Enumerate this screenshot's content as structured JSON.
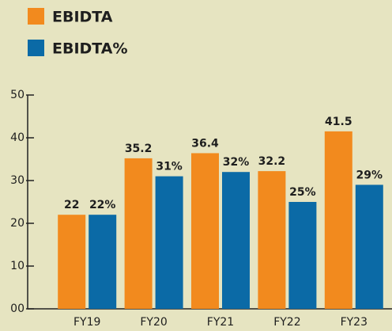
{
  "chart_data": {
    "type": "bar",
    "categories": [
      "FY19",
      "FY20",
      "FY21",
      "FY22",
      "FY23"
    ],
    "series": [
      {
        "name": "EBIDTA",
        "color": "#f28a1e",
        "values": [
          22,
          35.2,
          36.4,
          32.2,
          41.5
        ]
      },
      {
        "name": "EBIDTA%",
        "color": "#0b6aa6",
        "values": [
          22,
          31,
          32,
          25,
          29
        ],
        "value_labels": [
          "22%",
          "31%",
          "32%",
          "25%",
          "29%"
        ]
      }
    ],
    "ylim": [
      0,
      50
    ],
    "yticks": [
      {
        "value": 0,
        "label": "00"
      },
      10,
      20,
      30,
      40,
      50
    ],
    "legend": "top-left"
  }
}
